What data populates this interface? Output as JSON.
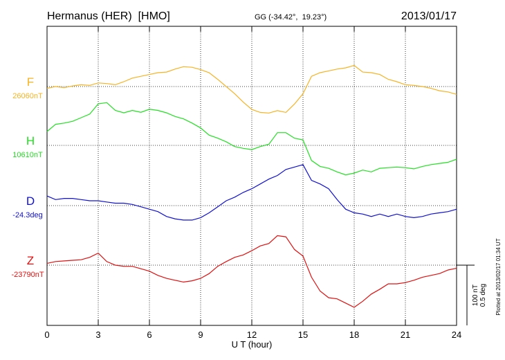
{
  "chart_data": {
    "type": "line",
    "title": "Hermanus (HER)  [HMO]",
    "subtitle": "GG (-34.42°,  19.23°)",
    "date": "2013/01/17",
    "x_label": "U T (hour)",
    "note": "Plotted at 2013/02/17 01:34 UT",
    "xlim": [
      0,
      24
    ],
    "xticks": [
      0,
      3,
      6,
      9,
      12,
      15,
      18,
      21,
      24
    ],
    "grid": true,
    "scale": {
      "y": {
        "value": 100,
        "label": "100 nT"
      },
      "y2": {
        "value": 0.5,
        "label": "0.5 deg"
      }
    },
    "x": [
      0,
      0.5,
      1,
      1.5,
      2,
      2.5,
      3,
      3.5,
      4,
      4.5,
      5,
      5.5,
      6,
      6.5,
      7,
      7.5,
      8,
      8.5,
      9,
      9.5,
      10,
      10.5,
      11,
      11.5,
      12,
      12.5,
      13,
      13.5,
      14,
      14.5,
      15,
      15.5,
      16,
      16.5,
      17,
      17.5,
      18,
      18.5,
      19,
      19.5,
      20,
      20.5,
      21,
      21.5,
      22,
      22.5,
      23,
      23.5,
      24
    ],
    "series": [
      {
        "name": "F",
        "color": "#f5b324",
        "base": {
          "value": 26060,
          "label": "26060nT"
        },
        "values": [
          26057,
          26060,
          26058,
          26061,
          26063,
          26062,
          26066,
          26065,
          26063,
          26068,
          26074,
          26077,
          26080,
          26083,
          26084,
          26089,
          26093,
          26092,
          26088,
          26083,
          26072,
          26060,
          26048,
          26034,
          26022,
          26017,
          26016,
          26020,
          26017,
          26031,
          26048,
          26077,
          26083,
          26086,
          26089,
          26091,
          26095,
          26084,
          26083,
          26080,
          26072,
          26068,
          26063,
          26062,
          26060,
          26057,
          26053,
          26051,
          26047
        ]
      },
      {
        "name": "H",
        "color": "#22e022",
        "base": {
          "value": 10610,
          "label": "10610nT"
        },
        "values": [
          10633,
          10645,
          10647,
          10650,
          10656,
          10662,
          10679,
          10681,
          10668,
          10664,
          10668,
          10665,
          10670,
          10668,
          10664,
          10658,
          10654,
          10647,
          10639,
          10627,
          10622,
          10616,
          10608,
          10605,
          10603,
          10608,
          10612,
          10631,
          10631,
          10622,
          10619,
          10585,
          10575,
          10572,
          10566,
          10561,
          10564,
          10569,
          10566,
          10572,
          10573,
          10574,
          10573,
          10571,
          10575,
          10578,
          10580,
          10582,
          10587
        ]
      },
      {
        "name": "D",
        "color": "#1010d0",
        "base": {
          "value": -24.3,
          "label": "-24.3deg"
        },
        "axis": "y2",
        "values": [
          -24.22,
          -24.25,
          -24.24,
          -24.24,
          -24.25,
          -24.26,
          -24.26,
          -24.27,
          -24.28,
          -24.28,
          -24.29,
          -24.31,
          -24.33,
          -24.35,
          -24.39,
          -24.41,
          -24.42,
          -24.42,
          -24.4,
          -24.36,
          -24.31,
          -24.26,
          -24.23,
          -24.19,
          -24.16,
          -24.12,
          -24.08,
          -24.05,
          -24.0,
          -23.98,
          -23.96,
          -24.09,
          -24.12,
          -24.16,
          -24.25,
          -24.33,
          -24.36,
          -24.37,
          -24.39,
          -24.37,
          -24.39,
          -24.37,
          -24.39,
          -24.4,
          -24.39,
          -24.37,
          -24.36,
          -24.35,
          -24.33
        ]
      },
      {
        "name": "Z",
        "color": "#e01010",
        "base": {
          "value": -23790,
          "label": "-23790nT"
        },
        "values": [
          -23787,
          -23784,
          -23783,
          -23782,
          -23781,
          -23777,
          -23770,
          -23784,
          -23790,
          -23792,
          -23792,
          -23796,
          -23800,
          -23807,
          -23812,
          -23815,
          -23818,
          -23816,
          -23812,
          -23804,
          -23792,
          -23784,
          -23777,
          -23773,
          -23766,
          -23758,
          -23754,
          -23741,
          -23743,
          -23764,
          -23775,
          -23810,
          -23833,
          -23844,
          -23846,
          -23853,
          -23860,
          -23850,
          -23838,
          -23830,
          -23821,
          -23821,
          -23819,
          -23815,
          -23810,
          -23807,
          -23804,
          -23798,
          -23795
        ]
      }
    ]
  }
}
